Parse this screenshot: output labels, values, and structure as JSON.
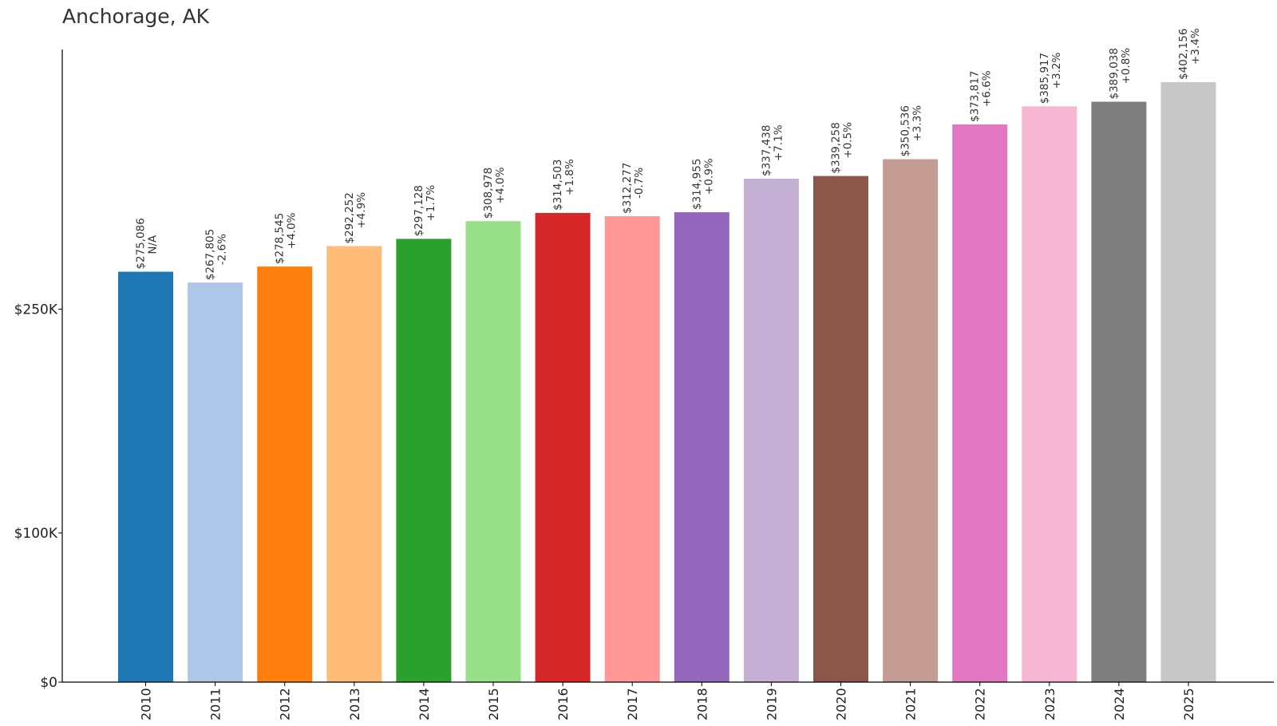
{
  "chart_data": {
    "type": "bar",
    "title": "Anchorage, AK",
    "xlabel": "",
    "ylabel": "",
    "ylim": [
      0,
      425000
    ],
    "grid": false,
    "yticks": [
      {
        "value": 0,
        "label": "$0"
      },
      {
        "value": 100000,
        "label": "$100K"
      },
      {
        "value": 250000,
        "label": "$250K"
      }
    ],
    "categories": [
      "2010",
      "2011",
      "2012",
      "2013",
      "2014",
      "2015",
      "2016",
      "2017",
      "2018",
      "2019",
      "2020",
      "2021",
      "2022",
      "2023",
      "2024",
      "2025"
    ],
    "values": [
      275086,
      267805,
      278545,
      292252,
      297128,
      308978,
      314503,
      312277,
      314955,
      337438,
      339258,
      350536,
      373817,
      385917,
      389038,
      402156
    ],
    "value_labels": [
      "$275,086",
      "$267,805",
      "$278,545",
      "$292,252",
      "$297,128",
      "$308,978",
      "$314,503",
      "$312,277",
      "$314,955",
      "$337,438",
      "$339,258",
      "$350,536",
      "$373,817",
      "$385,917",
      "$389,038",
      "$402,156"
    ],
    "change_labels": [
      "N/A",
      "-2.6%",
      "+4.0%",
      "+4.9%",
      "+1.7%",
      "+4.0%",
      "+1.8%",
      "-0.7%",
      "+0.9%",
      "+7.1%",
      "+0.5%",
      "+3.3%",
      "+6.6%",
      "+3.2%",
      "+0.8%",
      "+3.4%"
    ],
    "colors": [
      "#1f77b4",
      "#aec7e8",
      "#ff7f0e",
      "#ffbb78",
      "#2ca02c",
      "#98df8a",
      "#d62728",
      "#ff9896",
      "#9467bd",
      "#c5b0d5",
      "#8c564b",
      "#c49c94",
      "#e377c2",
      "#f7b6d2",
      "#7f7f7f",
      "#c7c7c7"
    ]
  }
}
